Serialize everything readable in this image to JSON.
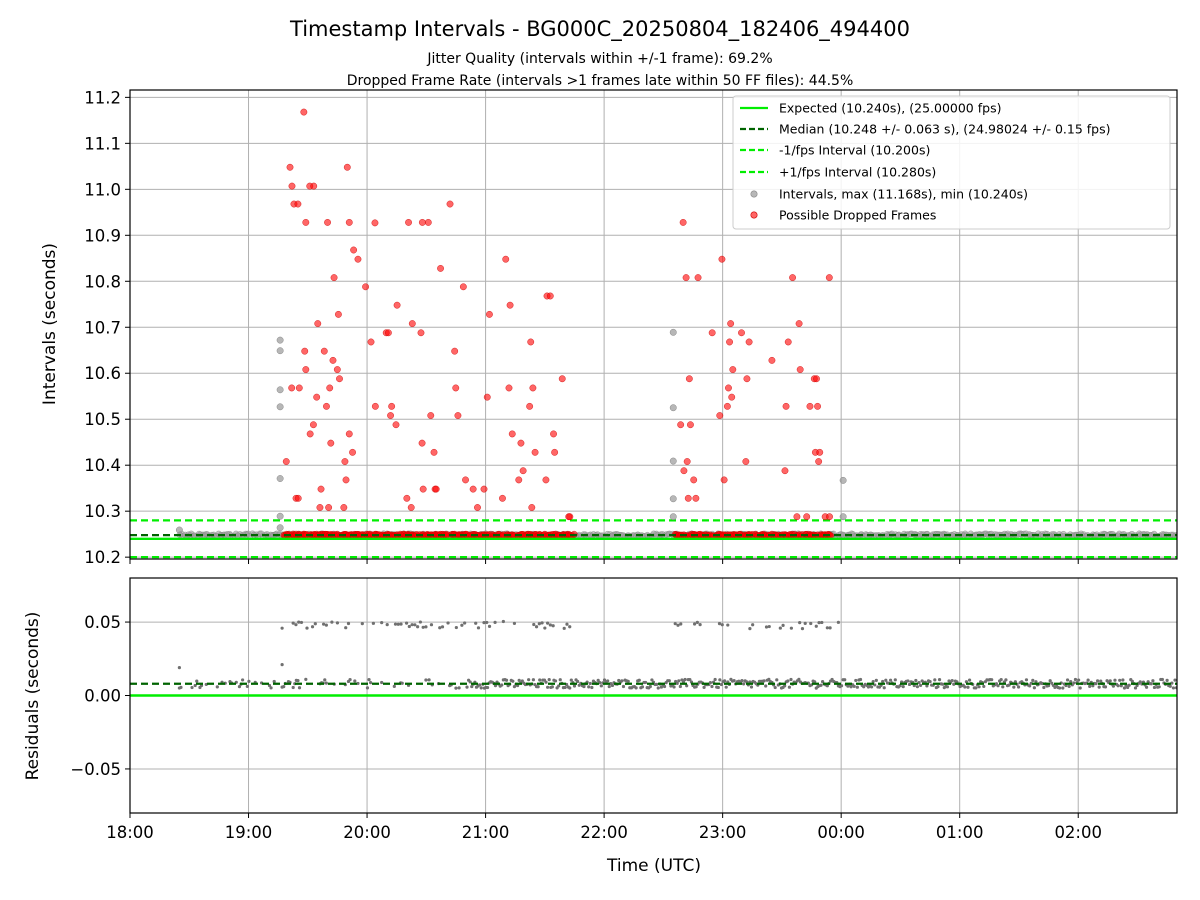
{
  "title": "Timestamp Intervals - BG000C_20250804_182406_494400",
  "subtitle_line1": "Jitter Quality (intervals within +/-1 frame): 69.2%",
  "subtitle_line2": "Dropped Frame Rate (intervals >1 frames late within 50 FF files): 44.5%",
  "colors": {
    "expected": "#00ee00",
    "median": "#006400",
    "interval_band": "#00ee00",
    "intervals": "#999999",
    "dropped": "#ff0000",
    "residuals": "#707070",
    "grid": "#b0b0b0"
  },
  "chart_data": [
    {
      "type": "scatter",
      "panel": "top",
      "ylabel": "Intervals (seconds)",
      "xlim": [
        "18:00",
        "02:50"
      ],
      "ylim": [
        10.196,
        11.216
      ],
      "y_ticks": [
        "10.2",
        "10.3",
        "10.4",
        "10.5",
        "10.6",
        "10.7",
        "10.8",
        "10.9",
        "11.0",
        "11.1",
        "11.2"
      ],
      "grid": true,
      "legend_position": "top-right",
      "legend": [
        "Expected (10.240s), (25.00000 fps)",
        "Median (10.248 +/- 0.063 s), (24.98024 +/- 0.15 fps)",
        "-1/fps Interval (10.200s)",
        "+1/fps Interval (10.280s)",
        "Intervals, max (11.168s), min (10.240s)",
        "Possible Dropped Frames"
      ],
      "reference_lines": {
        "expected": 10.24,
        "median": 10.248,
        "minus_1fps": 10.2,
        "plus_1fps": 10.28
      },
      "series": [
        {
          "name": "Intervals, max (11.168s), min (10.240s)",
          "x_range": [
            "18:25",
            "02:50"
          ],
          "y_baseline": 10.248,
          "extra_points": [
            [
              "18:25",
              10.259
            ],
            [
              "19:16",
              10.672
            ],
            [
              "19:16",
              10.649
            ],
            [
              "19:16",
              10.564
            ],
            [
              "19:16",
              10.527
            ],
            [
              "19:16",
              10.371
            ],
            [
              "19:16",
              10.289
            ],
            [
              "19:16",
              10.264
            ],
            [
              "22:35",
              10.689
            ],
            [
              "22:35",
              10.525
            ],
            [
              "22:35",
              10.409
            ],
            [
              "22:35",
              10.327
            ],
            [
              "22:35",
              10.288
            ],
            [
              "00:01",
              10.367
            ],
            [
              "00:01",
              10.288
            ]
          ]
        },
        {
          "name": "Possible Dropped Frames",
          "active_windows": [
            [
              "19:18",
              "21:45"
            ],
            [
              "22:36",
              "23:55"
            ]
          ],
          "y_range": [
            10.248,
            11.168
          ],
          "max_point": [
            "19:28",
            11.168
          ],
          "dropped_peaks": [
            [
              "19:21",
              11.048
            ],
            [
              "19:22",
              11.007
            ],
            [
              "19:23",
              10.968
            ],
            [
              "19:25",
              10.968
            ],
            [
              "19:29",
              10.928
            ],
            [
              "19:31",
              11.007
            ],
            [
              "19:33",
              11.007
            ],
            [
              "19:40",
              10.928
            ],
            [
              "19:50",
              11.048
            ],
            [
              "19:51",
              10.928
            ],
            [
              "20:04",
              10.927
            ],
            [
              "20:21",
              10.928
            ],
            [
              "20:28",
              10.928
            ],
            [
              "20:31",
              10.928
            ],
            [
              "20:42",
              10.968
            ],
            [
              "22:40",
              10.928
            ],
            [
              "23:54",
              10.808
            ]
          ]
        }
      ]
    },
    {
      "type": "scatter",
      "panel": "bottom",
      "xlabel": "Time (UTC)",
      "ylabel": "Residuals (seconds)",
      "xlim": [
        "18:00",
        "02:50"
      ],
      "ylim": [
        -0.08,
        0.08
      ],
      "x_ticks": [
        "18:00",
        "19:00",
        "20:00",
        "21:00",
        "22:00",
        "23:00",
        "00:00",
        "01:00",
        "02:00"
      ],
      "y_ticks": [
        "0.05",
        "0.00",
        "−0.05"
      ],
      "grid": true,
      "reference_lines": {
        "expected": 0.0,
        "median": 0.008
      },
      "series": [
        {
          "name": "Residuals",
          "baseline": 0.008,
          "outlier_level": 0.048,
          "outlier_windows": [
            [
              "19:17",
              "21:45"
            ],
            [
              "22:36",
              "00:01"
            ]
          ],
          "extra_points": [
            [
              "18:25",
              0.019
            ],
            [
              "19:17",
              0.021
            ]
          ]
        }
      ]
    }
  ]
}
